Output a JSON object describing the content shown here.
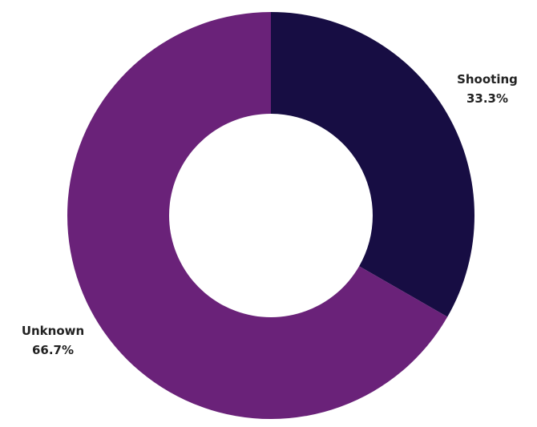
{
  "chart_data": {
    "type": "pie",
    "variant": "donut",
    "title": "",
    "slices": [
      {
        "label": "Shooting",
        "value": 33.3,
        "display": "33.3%",
        "color": "#170d43"
      },
      {
        "label": "Unknown",
        "value": 66.7,
        "display": "66.7%",
        "color": "#6a2279"
      }
    ],
    "start_angle_deg": 0,
    "direction": "clockwise",
    "legend": "none",
    "labels": "outside"
  }
}
